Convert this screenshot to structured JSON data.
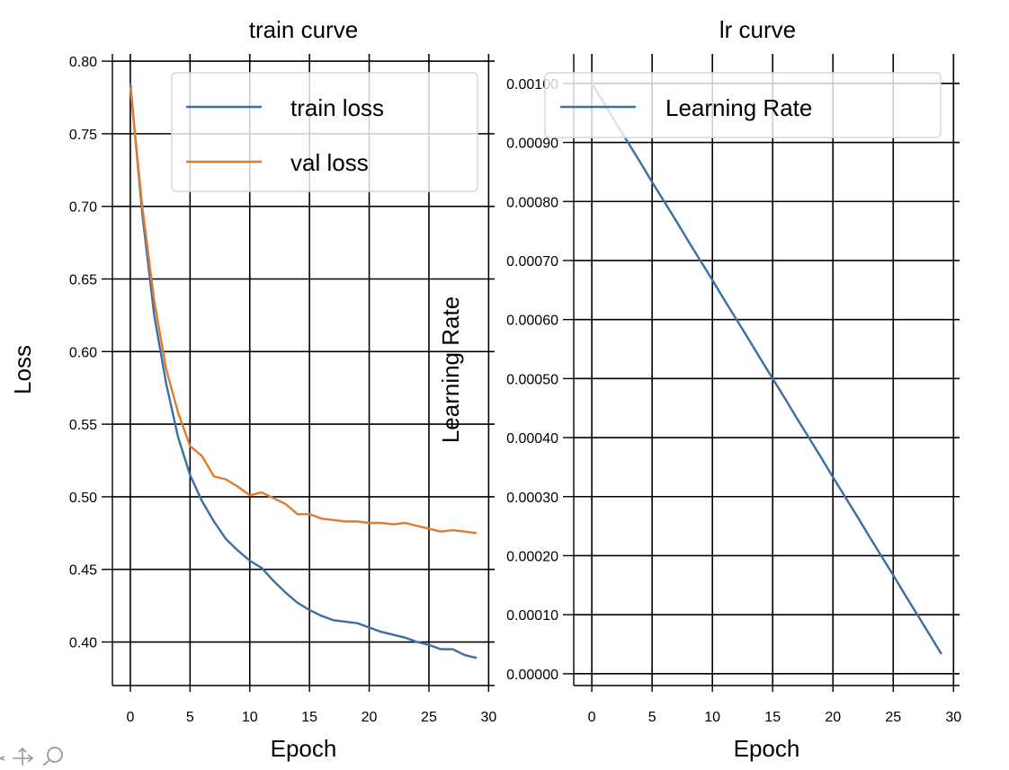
{
  "chart_data": [
    {
      "type": "line",
      "title": "train curve",
      "xlabel": "Epoch",
      "ylabel": "Loss",
      "xlim": [
        -1.5,
        30.5
      ],
      "ylim": [
        0.37,
        0.805
      ],
      "xticks": [
        "0",
        "5",
        "10",
        "15",
        "20",
        "25",
        "30"
      ],
      "yticks": [
        "0.40",
        "0.45",
        "0.50",
        "0.55",
        "0.60",
        "0.65",
        "0.70",
        "0.75",
        "0.80"
      ],
      "grid": true,
      "legend": "top-right",
      "x": [
        0,
        1,
        2,
        3,
        4,
        5,
        6,
        7,
        8,
        9,
        10,
        11,
        12,
        13,
        14,
        15,
        16,
        17,
        18,
        19,
        20,
        21,
        22,
        23,
        24,
        25,
        26,
        27,
        28,
        29
      ],
      "series": [
        {
          "name": "train loss",
          "color": "#3a6ea5",
          "values": [
            0.785,
            0.695,
            0.625,
            0.578,
            0.541,
            0.515,
            0.497,
            0.483,
            0.471,
            0.463,
            0.456,
            0.451,
            0.442,
            0.434,
            0.427,
            0.422,
            0.418,
            0.415,
            0.414,
            0.413,
            0.41,
            0.407,
            0.405,
            0.403,
            0.4,
            0.398,
            0.395,
            0.395,
            0.391,
            0.389
          ]
        },
        {
          "name": "val loss",
          "color": "#e07b30",
          "values": [
            0.782,
            0.7,
            0.635,
            0.588,
            0.558,
            0.535,
            0.528,
            0.514,
            0.512,
            0.507,
            0.501,
            0.503,
            0.499,
            0.495,
            0.488,
            0.488,
            0.485,
            0.484,
            0.483,
            0.483,
            0.482,
            0.482,
            0.481,
            0.482,
            0.48,
            0.478,
            0.476,
            0.477,
            0.476,
            0.475
          ]
        }
      ]
    },
    {
      "type": "line",
      "title": "lr curve",
      "xlabel": "Epoch",
      "ylabel": "Learning Rate",
      "xlim": [
        -1.5,
        30.5
      ],
      "ylim": [
        -2e-05,
        0.00105
      ],
      "xticks": [
        "0",
        "5",
        "10",
        "15",
        "20",
        "25",
        "30"
      ],
      "yticks": [
        "0.00000",
        "0.00010",
        "0.00020",
        "0.00030",
        "0.00040",
        "0.00050",
        "0.00060",
        "0.00070",
        "0.00080",
        "0.00090",
        "0.00100"
      ],
      "grid": true,
      "legend": "top-right",
      "x": [
        0,
        1,
        2,
        3,
        4,
        5,
        6,
        7,
        8,
        9,
        10,
        11,
        12,
        13,
        14,
        15,
        16,
        17,
        18,
        19,
        20,
        21,
        22,
        23,
        24,
        25,
        26,
        27,
        28,
        29
      ],
      "series": [
        {
          "name": "Learning Rate",
          "color": "#3a6ea5",
          "values": [
            0.001,
            0.000967,
            0.000933,
            0.0009,
            0.000867,
            0.000833,
            0.0008,
            0.000767,
            0.000733,
            0.0007,
            0.000667,
            0.000633,
            0.0006,
            0.000567,
            0.000533,
            0.0005,
            0.000467,
            0.000433,
            0.0004,
            0.000367,
            0.000333,
            0.0003,
            0.000267,
            0.000233,
            0.0002,
            0.000167,
            0.000133,
            0.0001,
            6.67e-05,
            3.33e-05
          ]
        }
      ]
    }
  ],
  "toolbar": {
    "pan_icon": "move-icon",
    "zoom_icon": "magnifier-icon"
  }
}
